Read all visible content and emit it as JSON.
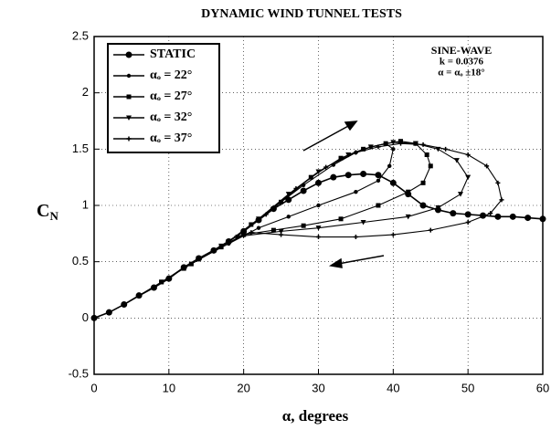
{
  "chart_data": {
    "type": "line",
    "title": "DYNAMIC WIND TUNNEL TESTS",
    "x_label": "α, degrees",
    "y_label": {
      "main": "C",
      "sub": "N"
    },
    "annotations": [
      "SINE-WAVE",
      "k = 0.0376",
      "α = αₒ ±18°"
    ],
    "xlim": [
      0,
      60
    ],
    "xticks": [
      0,
      10,
      20,
      30,
      40,
      50,
      60
    ],
    "ylim": [
      -0.5,
      2.5
    ],
    "yticks": [
      -0.5,
      0,
      0.5,
      1,
      1.5,
      2,
      2.5
    ],
    "grid": true,
    "legend": "upper left",
    "series": [
      {
        "name": "STATIC",
        "color": "#000000",
        "marker": "circle",
        "x": [
          0,
          2,
          4,
          6,
          8,
          10,
          12,
          14,
          16,
          18,
          20,
          22,
          24,
          26,
          28,
          30,
          32,
          34,
          36,
          38,
          40,
          42,
          44,
          46,
          48,
          50,
          52,
          54,
          56,
          58,
          60
        ],
        "values": [
          0,
          0.05,
          0.12,
          0.2,
          0.27,
          0.35,
          0.45,
          0.53,
          0.6,
          0.68,
          0.77,
          0.87,
          0.97,
          1.05,
          1.13,
          1.2,
          1.25,
          1.27,
          1.28,
          1.27,
          1.2,
          1.1,
          1.0,
          0.96,
          0.93,
          0.92,
          0.91,
          0.9,
          0.9,
          0.89,
          0.88
        ]
      },
      {
        "name": "αₒ = 22°",
        "color": "#000000",
        "marker": "dot",
        "x": [
          4,
          8,
          12,
          16,
          20,
          24,
          28,
          32,
          35,
          37,
          39,
          40,
          39.5,
          38,
          35,
          30,
          26,
          22,
          18,
          14,
          10,
          6,
          4
        ],
        "values": [
          0.12,
          0.27,
          0.45,
          0.6,
          0.77,
          0.98,
          1.18,
          1.36,
          1.47,
          1.52,
          1.55,
          1.5,
          1.35,
          1.22,
          1.12,
          1.0,
          0.9,
          0.8,
          0.66,
          0.52,
          0.36,
          0.2,
          0.12
        ]
      },
      {
        "name": "αₒ = 27°",
        "color": "#000000",
        "marker": "square",
        "x": [
          9,
          13,
          17,
          21,
          25,
          29,
          33,
          36,
          39,
          41,
          43,
          44.5,
          45,
          44,
          42,
          38,
          33,
          28,
          24,
          20,
          16,
          12,
          9
        ],
        "values": [
          0.32,
          0.48,
          0.63,
          0.83,
          1.03,
          1.25,
          1.42,
          1.5,
          1.55,
          1.57,
          1.55,
          1.45,
          1.35,
          1.2,
          1.12,
          1.0,
          0.88,
          0.82,
          0.78,
          0.74,
          0.6,
          0.44,
          0.32
        ]
      },
      {
        "name": "αₒ = 32°",
        "color": "#000000",
        "marker": "triangle",
        "x": [
          14,
          18,
          22,
          26,
          30,
          34,
          37,
          40,
          43,
          46,
          48.5,
          50,
          49,
          46,
          42,
          36,
          30,
          25,
          20,
          17,
          14
        ],
        "values": [
          0.53,
          0.68,
          0.88,
          1.1,
          1.3,
          1.45,
          1.52,
          1.56,
          1.55,
          1.5,
          1.4,
          1.25,
          1.1,
          0.98,
          0.9,
          0.85,
          0.8,
          0.77,
          0.73,
          0.64,
          0.53
        ]
      },
      {
        "name": "αₒ = 37°",
        "color": "#000000",
        "marker": "cross",
        "x": [
          19,
          23,
          27,
          31,
          35,
          38,
          41,
          44,
          47,
          50,
          52.5,
          54,
          54.5,
          53,
          50,
          45,
          40,
          35,
          30,
          25,
          21,
          19
        ],
        "values": [
          0.72,
          0.92,
          1.15,
          1.34,
          1.47,
          1.52,
          1.55,
          1.54,
          1.5,
          1.45,
          1.35,
          1.2,
          1.05,
          0.93,
          0.85,
          0.78,
          0.74,
          0.72,
          0.72,
          0.74,
          0.76,
          0.72
        ]
      }
    ]
  }
}
